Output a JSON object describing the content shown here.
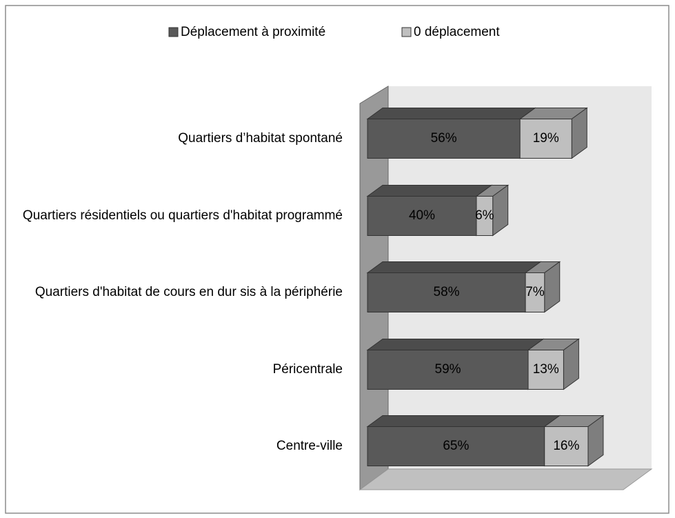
{
  "chart_data": {
    "type": "bar3d_stacked_horizontal",
    "categories": [
      "Quartiers d’habitat spontané",
      "Quartiers résidentiels ou quartiers d'habitat programmé",
      "Quartiers d'habitat de cours en dur sis à la périphérie",
      "Péricentrale",
      "Centre-ville"
    ],
    "series": [
      {
        "name": "Déplacement à proximité",
        "color": "#595959",
        "values": [
          56,
          40,
          58,
          59,
          65
        ],
        "value_labels": [
          "56%",
          "40%",
          "58%",
          "59%",
          "65%"
        ]
      },
      {
        "name": "0 déplacement",
        "color": "#bfbfbf",
        "values": [
          19,
          6,
          7,
          13,
          16
        ],
        "value_labels": [
          "19%",
          "6%",
          "7%",
          "13%",
          "16%"
        ]
      }
    ],
    "legend": "top"
  }
}
